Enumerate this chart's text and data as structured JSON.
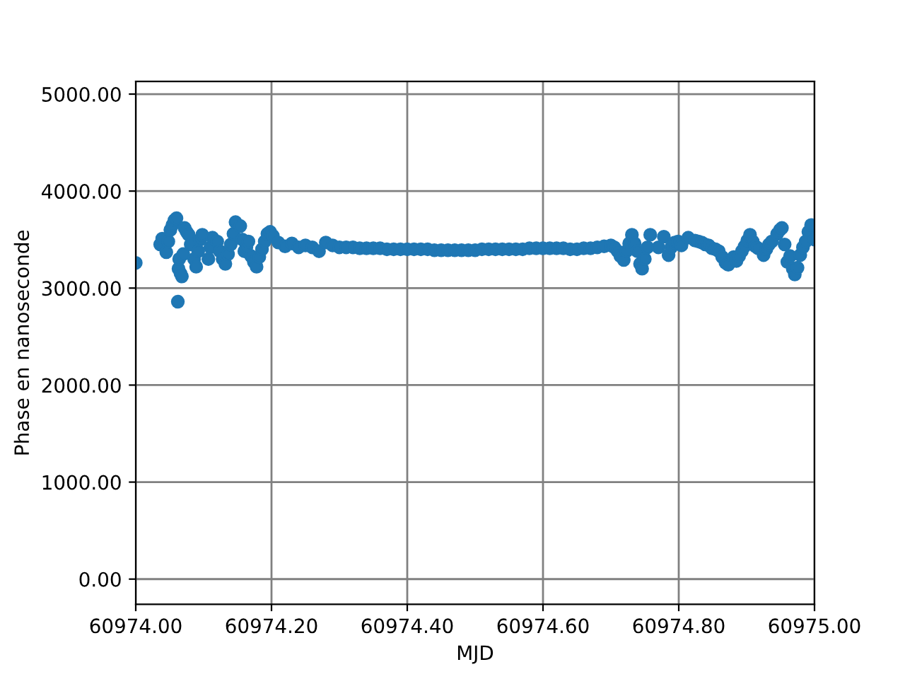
{
  "chart_data": {
    "type": "scatter",
    "xlabel": "MJD",
    "ylabel": "Phase en nanoseconde",
    "xlim": [
      60974.0,
      60975.0
    ],
    "ylim": [
      -260,
      5130
    ],
    "xticks": [
      {
        "value": 60974.0,
        "label": "60974.00"
      },
      {
        "value": 60974.2,
        "label": "60974.20"
      },
      {
        "value": 60974.4,
        "label": "60974.40"
      },
      {
        "value": 60974.6,
        "label": "60974.60"
      },
      {
        "value": 60974.8,
        "label": "60974.80"
      },
      {
        "value": 60975.0,
        "label": "60975.00"
      }
    ],
    "yticks": [
      {
        "value": 0,
        "label": "0.00"
      },
      {
        "value": 1000,
        "label": "1000.00"
      },
      {
        "value": 2000,
        "label": "2000.00"
      },
      {
        "value": 3000,
        "label": "3000.00"
      },
      {
        "value": 4000,
        "label": "4000.00"
      },
      {
        "value": 5000,
        "label": "5000.00"
      }
    ],
    "grid": true,
    "marker": "circle",
    "series": [
      {
        "color": "#1f77b4",
        "x": [
          60974.0,
          60974.036,
          60974.039,
          60974.045,
          60974.048,
          60974.051,
          60974.054,
          60974.057,
          60974.06,
          60974.062,
          60974.063,
          60974.064,
          60974.066,
          60974.068,
          60974.07,
          60974.072,
          60974.075,
          60974.078,
          60974.081,
          60974.086,
          60974.089,
          60974.092,
          60974.095,
          60974.098,
          60974.107,
          60974.11,
          60974.113,
          60974.12,
          60974.124,
          60974.128,
          60974.132,
          60974.136,
          60974.14,
          60974.144,
          60974.147,
          60974.154,
          60974.157,
          60974.16,
          60974.163,
          60974.166,
          60974.17,
          60974.174,
          60974.178,
          60974.182,
          60974.186,
          60974.19,
          60974.194,
          60974.198,
          60974.202,
          60974.21,
          60974.22,
          60974.23,
          60974.24,
          60974.25,
          60974.26,
          60974.27,
          60974.28,
          60974.29,
          60974.3,
          60974.31,
          60974.32,
          60974.33,
          60974.34,
          60974.35,
          60974.36,
          60974.37,
          60974.38,
          60974.39,
          60974.4,
          60974.41,
          60974.42,
          60974.43,
          60974.44,
          60974.45,
          60974.46,
          60974.47,
          60974.48,
          60974.49,
          60974.5,
          60974.51,
          60974.52,
          60974.53,
          60974.54,
          60974.55,
          60974.56,
          60974.57,
          60974.58,
          60974.59,
          60974.6,
          60974.61,
          60974.62,
          60974.63,
          60974.64,
          60974.65,
          60974.66,
          60974.67,
          60974.68,
          60974.69,
          60974.7,
          60974.705,
          60974.71,
          60974.714,
          60974.719,
          60974.723,
          60974.727,
          60974.731,
          60974.735,
          60974.739,
          60974.743,
          60974.746,
          60974.75,
          60974.754,
          60974.758,
          60974.77,
          60974.778,
          60974.785,
          60974.789,
          60974.794,
          60974.799,
          60974.804,
          60974.814,
          60974.824,
          60974.829,
          60974.834,
          60974.839,
          60974.844,
          60974.849,
          60974.854,
          60974.859,
          60974.864,
          60974.869,
          60974.873,
          60974.881,
          60974.885,
          60974.889,
          60974.893,
          60974.897,
          60974.901,
          60974.905,
          60974.909,
          60974.913,
          60974.917,
          60974.925,
          60974.929,
          60974.933,
          60974.937,
          60974.945,
          60974.949,
          60974.952,
          60974.956,
          60974.96,
          60974.964,
          60974.968,
          60974.971,
          60974.975,
          60974.979,
          60974.983,
          60974.987,
          60974.991,
          60974.995,
          60975.0
        ],
        "values": [
          3260,
          3450,
          3510,
          3370,
          3480,
          3600,
          3650,
          3700,
          3720,
          2860,
          3200,
          3300,
          3150,
          3120,
          3350,
          3620,
          3580,
          3550,
          3450,
          3300,
          3220,
          3380,
          3500,
          3550,
          3300,
          3420,
          3520,
          3480,
          3380,
          3300,
          3250,
          3350,
          3450,
          3560,
          3680,
          3640,
          3500,
          3380,
          3420,
          3480,
          3330,
          3270,
          3220,
          3320,
          3400,
          3480,
          3560,
          3580,
          3540,
          3470,
          3430,
          3460,
          3420,
          3440,
          3420,
          3380,
          3470,
          3440,
          3420,
          3420,
          3420,
          3410,
          3410,
          3410,
          3410,
          3400,
          3400,
          3400,
          3400,
          3400,
          3400,
          3400,
          3390,
          3390,
          3390,
          3390,
          3390,
          3390,
          3390,
          3400,
          3400,
          3400,
          3400,
          3400,
          3400,
          3400,
          3410,
          3410,
          3410,
          3410,
          3410,
          3410,
          3400,
          3400,
          3410,
          3410,
          3420,
          3430,
          3440,
          3420,
          3380,
          3330,
          3290,
          3380,
          3460,
          3550,
          3460,
          3380,
          3250,
          3200,
          3300,
          3420,
          3550,
          3420,
          3530,
          3340,
          3420,
          3470,
          3480,
          3440,
          3520,
          3490,
          3480,
          3470,
          3450,
          3440,
          3410,
          3400,
          3380,
          3320,
          3260,
          3240,
          3320,
          3280,
          3330,
          3380,
          3430,
          3490,
          3550,
          3480,
          3430,
          3410,
          3340,
          3400,
          3450,
          3480,
          3560,
          3600,
          3620,
          3450,
          3270,
          3330,
          3200,
          3140,
          3210,
          3340,
          3420,
          3480,
          3580,
          3650,
          3500
        ]
      }
    ]
  }
}
